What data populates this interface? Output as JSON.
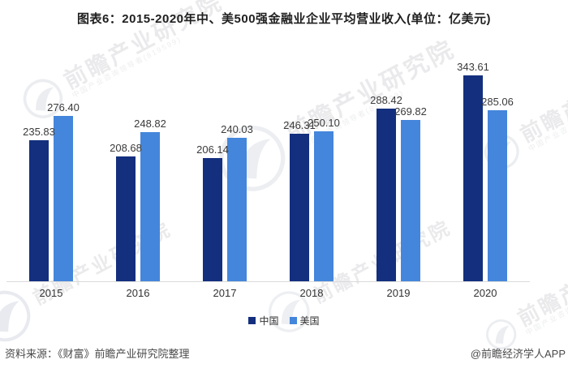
{
  "title": "图表6：2015-2020年中、美500强金融业企业平均营业收入(单位：亿美元)",
  "chart_data": {
    "type": "bar",
    "categories": [
      "2015",
      "2016",
      "2017",
      "2018",
      "2019",
      "2020"
    ],
    "series": [
      {
        "key": "china",
        "name": "中国",
        "color": "#132f7e",
        "values": [
          235.83,
          208.68,
          206.14,
          246.31,
          288.42,
          343.61
        ]
      },
      {
        "key": "usa",
        "name": "美国",
        "color": "#4486db",
        "values": [
          276.4,
          248.82,
          240.03,
          250.1,
          269.82,
          285.06
        ]
      }
    ],
    "ylim": [
      0,
      360
    ],
    "grid": false,
    "value_labels": true,
    "legend_position": "bottom"
  },
  "legend": {
    "items": [
      {
        "key": "china",
        "label": "中国",
        "color": "#132f7e"
      },
      {
        "key": "usa",
        "label": "美国",
        "color": "#4486db"
      }
    ]
  },
  "footer": {
    "source": "资料来源：《财富》前瞻产业研究院整理",
    "credit": "@前瞻经济学人APP"
  },
  "watermark": {
    "text": "前瞻产业研究院",
    "subtext": "中国产业咨询领导者(819599)"
  },
  "colors": {
    "axis": "#dadada",
    "title_text": "#1f1f1f",
    "label_text": "#3a3a3a"
  }
}
